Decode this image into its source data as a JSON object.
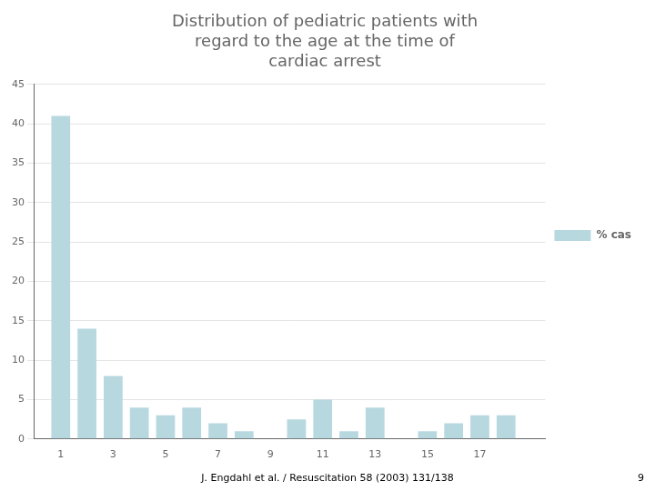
{
  "chart_data": {
    "type": "bar",
    "title": "Distribution of pediatric patients with\nregard to the age at the time of\ncardiac arrest",
    "x": [
      1,
      2,
      3,
      4,
      5,
      6,
      7,
      8,
      9,
      10,
      11,
      12,
      13,
      14,
      15,
      16,
      17,
      18
    ],
    "series": [
      {
        "name": "% cas",
        "color": "#b8d8e0",
        "values": [
          41,
          14,
          8,
          4,
          3,
          4,
          2,
          1,
          0,
          2.5,
          5,
          1,
          4,
          0,
          1,
          2,
          3,
          3
        ]
      }
    ],
    "xlim": [
      0,
      19.5
    ],
    "xticks": [
      1,
      3,
      5,
      7,
      9,
      11,
      13,
      15,
      17
    ],
    "ylim": [
      0,
      45
    ],
    "yticks": [
      0,
      5,
      10,
      15,
      20,
      25,
      30,
      35,
      40,
      45
    ],
    "grid": "y",
    "legend": "right",
    "annotations": [
      "J. Engdahl et al. / Resuscitation 58 (2003) 131/138",
      "9"
    ]
  }
}
